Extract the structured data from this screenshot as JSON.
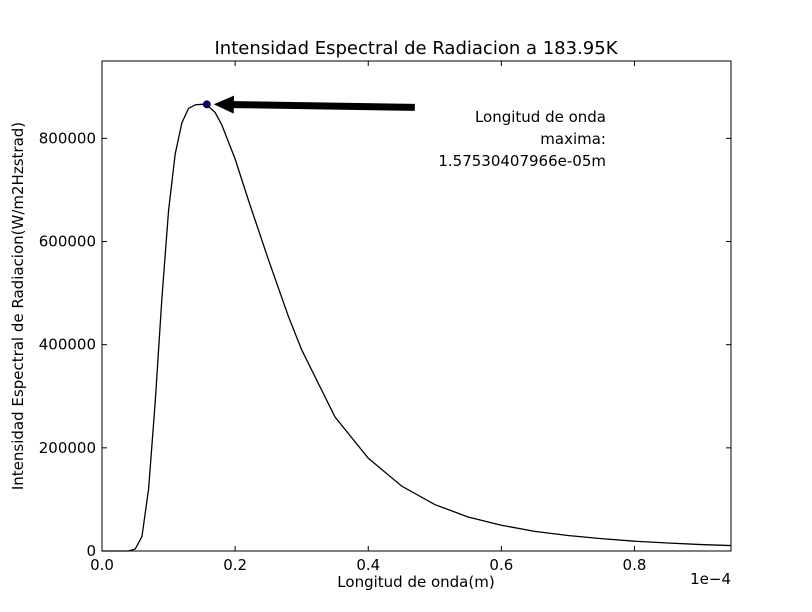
{
  "chart_data": {
    "type": "line",
    "title": "Intensidad Espectral de Radiacion a 183.95K",
    "xlabel": "Longitud de onda(m)",
    "ylabel": "Intensidad Espectral de Radiacion(W/m2Hzstrad)",
    "x_offset_label": "1e−4",
    "x_ticks": [
      0.0,
      0.2,
      0.4,
      0.6,
      0.8
    ],
    "x_tick_labels": [
      "0.0",
      "0.2",
      "0.4",
      "0.6",
      "0.8"
    ],
    "y_ticks": [
      0,
      200000,
      400000,
      600000,
      800000
    ],
    "y_tick_labels": [
      "0",
      "200000",
      "400000",
      "600000",
      "800000"
    ],
    "xlim": [
      0.0,
      0.945
    ],
    "ylim": [
      0,
      950000
    ],
    "grid": false,
    "temperature_K": 183.95,
    "series": [
      {
        "x": [
          0.0,
          0.04,
          0.05,
          0.06,
          0.07,
          0.08,
          0.09,
          0.1,
          0.11,
          0.12,
          0.13,
          0.14,
          0.15,
          0.1575,
          0.17,
          0.18,
          0.2,
          0.22,
          0.25,
          0.28,
          0.3,
          0.35,
          0.4,
          0.45,
          0.5,
          0.55,
          0.6,
          0.65,
          0.7,
          0.75,
          0.8,
          0.85,
          0.9,
          0.945
        ],
        "y": [
          0,
          0,
          4000,
          28000,
          120000,
          290000,
          490000,
          660000,
          770000,
          830000,
          858000,
          865000,
          866000,
          865000,
          850000,
          826000,
          760000,
          680000,
          565000,
          455000,
          390000,
          260000,
          180000,
          126000,
          90000,
          66000,
          50000,
          38000,
          30000,
          24000,
          19000,
          15500,
          12500,
          10500
        ],
        "color": "#000000"
      }
    ],
    "peak_point": {
      "x": 0.1575,
      "y": 866000,
      "color": "#000080"
    },
    "annotation": {
      "lines": [
        "Longitud de onda",
        "maxima:",
        "1.57530407966e-05m"
      ],
      "arrow_tail": {
        "x": 0.47,
        "y": 860000
      },
      "arrow_head": {
        "x": 0.1575,
        "y": 866000
      }
    }
  }
}
